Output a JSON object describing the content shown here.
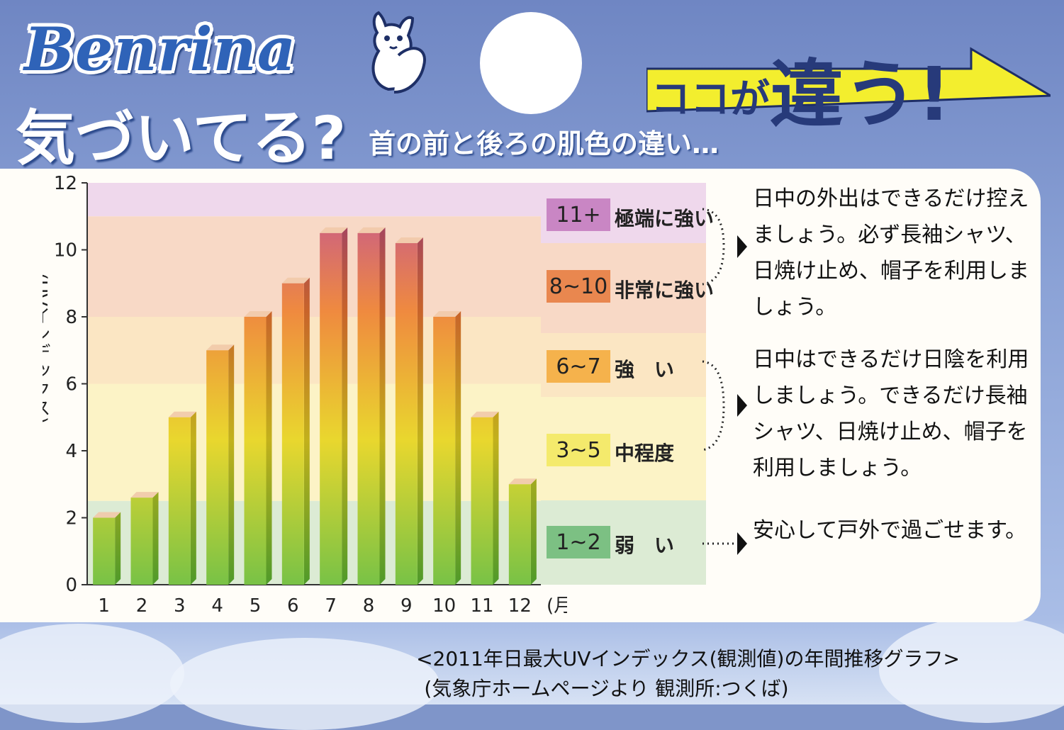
{
  "brand": {
    "logo_text": "Benrina"
  },
  "badge": {
    "text_small": "ココが",
    "text_big": "違う!"
  },
  "headline": {
    "main": "気づいてる?",
    "sub": "首の前と後ろの肌色の違い…"
  },
  "colors": {
    "bar_bottom": "#78c246",
    "bar_mid": "#e9d72e",
    "bar_upper": "#ef8a3f",
    "bar_top": "#c0529a"
  },
  "chart_data": {
    "type": "bar",
    "title": "",
    "xlabel": "(月)",
    "ylabel": "(UVインデックス)",
    "categories": [
      "1",
      "2",
      "3",
      "4",
      "5",
      "6",
      "7",
      "8",
      "9",
      "10",
      "11",
      "12"
    ],
    "values": [
      2.0,
      2.6,
      5.0,
      7.0,
      8.0,
      9.0,
      10.5,
      10.5,
      10.2,
      8.0,
      5.0,
      3.0
    ],
    "ylim": [
      0,
      12
    ],
    "yticks": [
      "0",
      "2",
      "4",
      "6",
      "8",
      "10",
      "12"
    ],
    "grid": false
  },
  "uv_levels": [
    {
      "range": "11+",
      "label": "極端に強い",
      "band_color": "#efd8ec",
      "box_color": "#c986c4"
    },
    {
      "range": "8~10",
      "label": "非常に強い",
      "band_color": "#f8d9c6",
      "box_color": "#e9874f"
    },
    {
      "range": "6~7",
      "label": "強　い",
      "band_color": "#fbe6c3",
      "box_color": "#f5b24c"
    },
    {
      "range": "3~5",
      "label": "中程度",
      "band_color": "#fcf3c6",
      "box_color": "#f4ea6c"
    },
    {
      "range": "1~2",
      "label": "弱　い",
      "band_color": "#dcebd4",
      "box_color": "#7cc083"
    }
  ],
  "advice": {
    "high": "日中の外出はできるだけ控えましょう。必ず長袖シャツ、日焼け止め、帽子を利用しましょう。",
    "moderate": "日中はできるだけ日陰を利用しましょう。できるだけ長袖シャツ、日焼け止め、帽子を利用しましょう。",
    "low": "安心して戸外で過ごせます。"
  },
  "footnote": {
    "line1": "<2011年日最大UVインデックス(観測値)の年間推移グラフ>",
    "line2": "(気象庁ホームページより 観測所:つくば)"
  }
}
